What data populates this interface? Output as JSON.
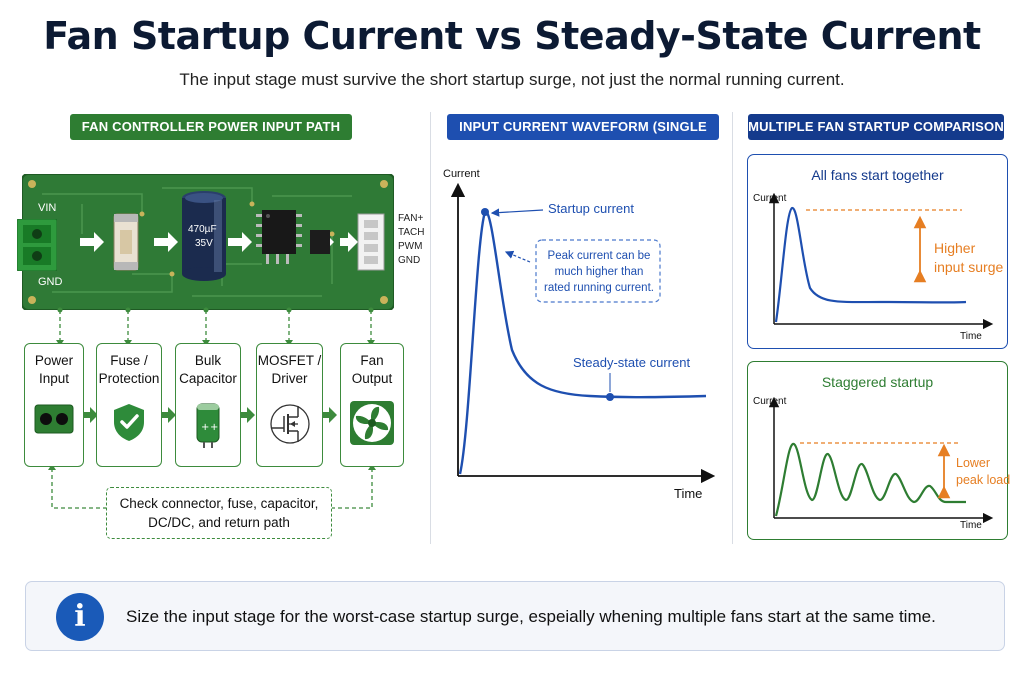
{
  "title": "Fan Startup Current vs Steady-State Current",
  "subtitle": "The input stage must survive the short startup surge, not just the normal running current.",
  "colors": {
    "green": "#2e7d32",
    "blue": "#1e4fb0",
    "navy": "#143a8c",
    "orange": "#e67e22",
    "pcb": "#2f7a36"
  },
  "left_panel": {
    "header": "FAN CONTROLLER POWER INPUT PATH",
    "pcb": {
      "vin_label": "VIN",
      "gnd_label": "GND",
      "capacitor_value": "470µF",
      "capacitor_voltage": "35V",
      "connector_pins": [
        "FAN+",
        "TACH",
        "PWM",
        "GND"
      ]
    },
    "blocks": [
      {
        "line1": "Power",
        "line2": "Input",
        "icon": "connector-icon"
      },
      {
        "line1": "Fuse /",
        "line2": "Protection",
        "icon": "shield-check-icon"
      },
      {
        "line1": "Bulk",
        "line2": "Capacitor",
        "icon": "capacitor-icon"
      },
      {
        "line1": "MOSFET /",
        "line2": "Driver",
        "icon": "mosfet-icon"
      },
      {
        "line1": "Fan",
        "line2": "Output",
        "icon": "fan-icon"
      }
    ],
    "check_note": {
      "line1": "Check connector, fuse, capacitor,",
      "line2": "DC/DC, and return path"
    }
  },
  "middle_panel": {
    "header": "INPUT CURRENT WAVEFORM (SINGLE FAN)",
    "y_label": "Current",
    "x_label": "Time",
    "startup_label": "Startup current",
    "peak_note": {
      "line1": "Peak current can be",
      "line2": "much higher than",
      "line3": "rated running current."
    },
    "steady_label": "Steady-state current"
  },
  "right_panel": {
    "header": "MULTIPLE FAN STARTUP COMPARISON",
    "top": {
      "title": "All fans start together",
      "y_label": "Current",
      "x_label": "Time",
      "note_line1": "Higher",
      "note_line2": "input surge"
    },
    "bottom": {
      "title": "Staggered startup",
      "y_label": "Current",
      "x_label": "Time",
      "note_line1": "Lower",
      "note_line2": "peak load"
    }
  },
  "banner": {
    "icon_glyph": "i",
    "text": "Size the input stage for the worst-case startup surge, espeially whening multiple fans start at the same time."
  }
}
